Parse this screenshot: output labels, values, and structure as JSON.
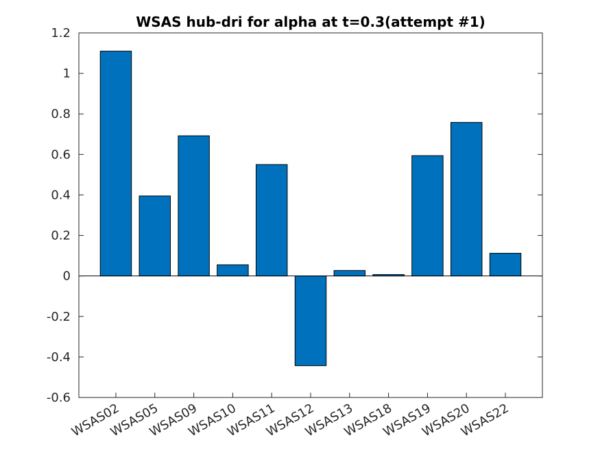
{
  "chart_data": {
    "type": "bar",
    "title": "WSAS hub-dri for alpha at t=0.3(attempt #1)",
    "xlabel": "",
    "ylabel": "",
    "categories": [
      "WSAS02",
      "WSAS05",
      "WSAS09",
      "WSAS10",
      "WSAS11",
      "WSAS12",
      "WSAS13",
      "WSAS18",
      "WSAS19",
      "WSAS20",
      "WSAS22"
    ],
    "values": [
      1.11,
      0.395,
      0.692,
      0.055,
      0.55,
      -0.443,
      0.027,
      0.007,
      0.594,
      0.758,
      0.112
    ],
    "ylim": [
      -0.6,
      1.2
    ],
    "yticks": [
      -0.6,
      -0.4,
      -0.2,
      0,
      0.2,
      0.4,
      0.6,
      0.8,
      1,
      1.2
    ],
    "ytick_labels": [
      "-0.6",
      "-0.4",
      "-0.2",
      "0",
      "0.2",
      "0.4",
      "0.6",
      "0.8",
      "1",
      "1.2"
    ],
    "grid": false,
    "legend": "none",
    "colors": {
      "bar": "#0072BD",
      "axis": "#262626",
      "background": "#ffffff"
    }
  }
}
